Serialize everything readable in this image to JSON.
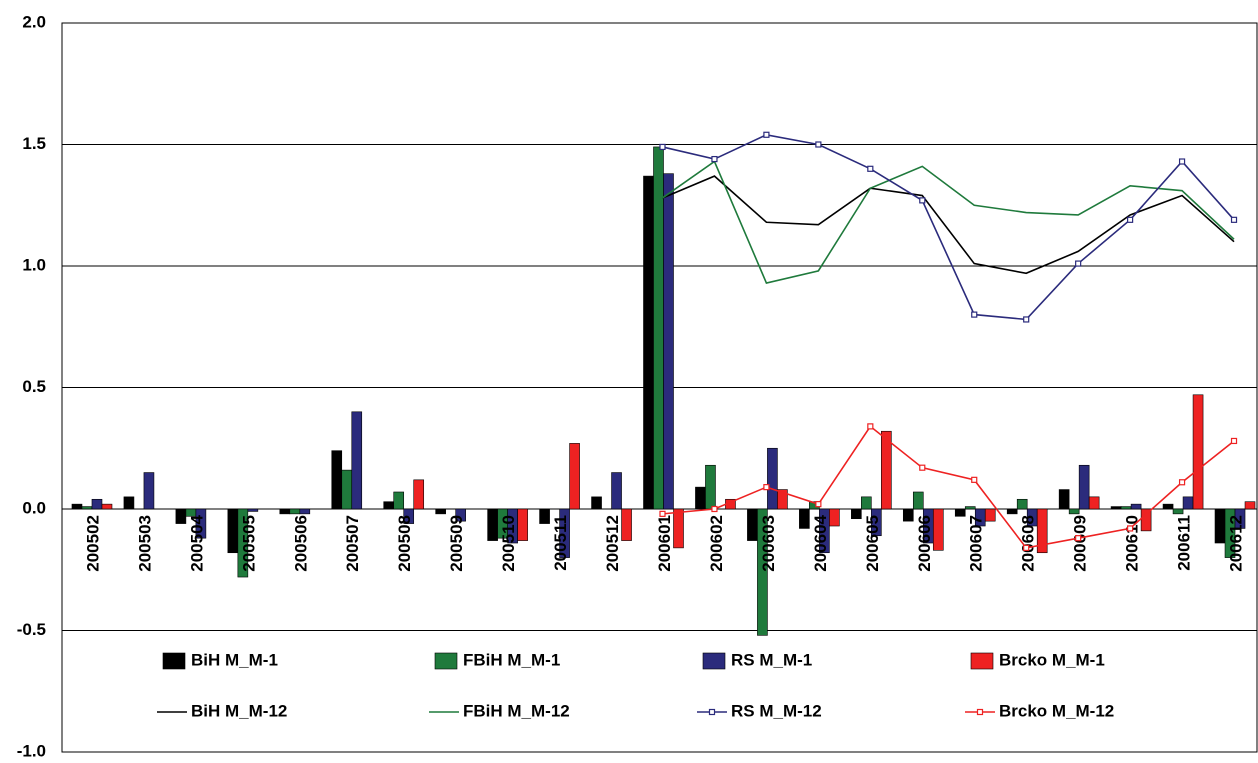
{
  "chart_data": {
    "type": "bar",
    "categories": [
      "200502",
      "200503",
      "200504",
      "200505",
      "200506",
      "200507",
      "200508",
      "200509",
      "200510",
      "200511",
      "200512",
      "200601",
      "200602",
      "200603",
      "200604",
      "200605",
      "200606",
      "200607",
      "200608",
      "200609",
      "200610",
      "200611",
      "200612"
    ],
    "ylim": [
      -1.0,
      2.0
    ],
    "yticks": [
      {
        "value": -1.0,
        "label": "-1.0"
      },
      -0.5,
      {
        "value": 0,
        "label": "0.0"
      },
      0.5,
      {
        "value": 1.0,
        "label": "1.0"
      },
      1.5,
      {
        "value": 2.0,
        "label": "2.0"
      }
    ],
    "grid": true,
    "series": [
      {
        "name": "BiH M_M-1",
        "type": "bar",
        "color": "#000000",
        "values": [
          0.02,
          0.05,
          -0.06,
          -0.18,
          -0.02,
          0.24,
          0.03,
          -0.02,
          -0.13,
          -0.06,
          0.05,
          1.37,
          0.09,
          -0.13,
          -0.08,
          -0.04,
          -0.05,
          -0.03,
          -0.02,
          0.08,
          0.01,
          0.02,
          -0.14
        ]
      },
      {
        "name": "FBiH M_M-1",
        "type": "bar",
        "color": "#1f7a3c",
        "values": [
          0.01,
          0,
          -0.03,
          -0.28,
          -0.02,
          0.16,
          0.07,
          0,
          -0.12,
          0,
          0,
          1.49,
          0.18,
          -0.52,
          0.03,
          0.05,
          0.07,
          0.01,
          0.04,
          -0.02,
          0.01,
          -0.02,
          -0.2
        ]
      },
      {
        "name": "RS M_M-1",
        "type": "bar",
        "color": "#2b2b7c",
        "values": [
          0.04,
          0.15,
          -0.12,
          -0.01,
          -0.02,
          0.4,
          -0.06,
          -0.05,
          -0.14,
          -0.2,
          0.15,
          1.38,
          0,
          0.25,
          -0.18,
          -0.11,
          -0.14,
          -0.07,
          -0.07,
          0.18,
          0.02,
          0.05,
          -0.08
        ]
      },
      {
        "name": "Brcko M_M-1",
        "type": "bar",
        "color": "#ee2222",
        "values": [
          0.02,
          0,
          0,
          0,
          0,
          0,
          0.12,
          0,
          -0.13,
          0.27,
          -0.13,
          -0.16,
          0.04,
          0.08,
          -0.07,
          0.32,
          -0.17,
          -0.05,
          -0.18,
          0.05,
          -0.09,
          0.47,
          0.03
        ]
      },
      {
        "name": "BiH M_M-12",
        "type": "line",
        "color": "#000000",
        "values": [
          null,
          null,
          null,
          null,
          null,
          null,
          null,
          null,
          null,
          null,
          null,
          1.28,
          1.37,
          1.18,
          1.17,
          1.32,
          1.29,
          1.01,
          0.97,
          1.06,
          1.21,
          1.29,
          1.1
        ]
      },
      {
        "name": "FBiH M_M-12",
        "type": "line",
        "color": "#1f7a3c",
        "values": [
          null,
          null,
          null,
          null,
          null,
          null,
          null,
          null,
          null,
          null,
          null,
          1.28,
          1.43,
          0.93,
          0.98,
          1.32,
          1.41,
          1.25,
          1.22,
          1.21,
          1.33,
          1.31,
          1.11
        ]
      },
      {
        "name": "RS M_M-12",
        "type": "line",
        "marker": "square",
        "color": "#2b2b7c",
        "values": [
          null,
          null,
          null,
          null,
          null,
          null,
          null,
          null,
          null,
          null,
          null,
          1.49,
          1.44,
          1.54,
          1.5,
          1.4,
          1.27,
          0.8,
          0.78,
          1.01,
          1.19,
          1.43,
          1.19
        ]
      },
      {
        "name": "Brcko M_M-12",
        "type": "line",
        "marker": "square",
        "color": "#ee2222",
        "values": [
          null,
          null,
          null,
          null,
          null,
          null,
          null,
          null,
          null,
          null,
          null,
          -0.02,
          0,
          0.09,
          0.02,
          0.34,
          0.17,
          0.12,
          -0.16,
          -0.12,
          -0.08,
          0.11,
          0.28
        ]
      }
    ]
  }
}
